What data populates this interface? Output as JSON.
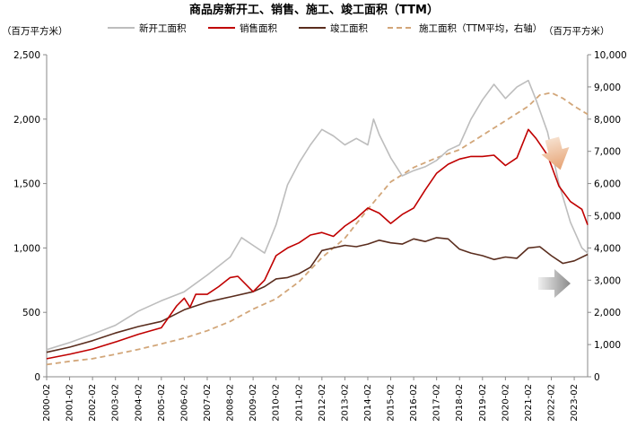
{
  "chart_data": {
    "type": "line",
    "title": "商品房新开工、销售、施工、竣工面积（TTM）",
    "ylabel_left": "（百万平方米）",
    "ylabel_right": "（百万平方米）",
    "ylim_left": [
      0,
      2500
    ],
    "ylim_right": [
      0,
      10000
    ],
    "yticks_left": [
      "0",
      "500",
      "1,000",
      "1,500",
      "2,000",
      "2,500"
    ],
    "yticks_right": [
      "0",
      "1,000",
      "2,000",
      "3,000",
      "4,000",
      "5,000",
      "6,000",
      "7,000",
      "8,000",
      "9,000",
      "10,000"
    ],
    "x": [
      "2000-02",
      "2001-02",
      "2002-02",
      "2003-02",
      "2004-02",
      "2005-02",
      "2006-02",
      "2007-02",
      "2008-02",
      "2009-02",
      "2010-02",
      "2011-02",
      "2012-02",
      "2013-02",
      "2014-02",
      "2015-02",
      "2016-02",
      "2017-02",
      "2018-02",
      "2019-02",
      "2020-02",
      "2021-02",
      "2022-02",
      "2023-02"
    ],
    "x_start": "2000-02",
    "x_end": "2023-09",
    "grid": false,
    "legend_position": "top",
    "series": [
      {
        "name": "新开工面积",
        "axis": "left",
        "color": "#bdbdbd",
        "style": "solid",
        "points": [
          [
            "2000-02",
            210
          ],
          [
            "2001-02",
            265
          ],
          [
            "2002-02",
            330
          ],
          [
            "2003-02",
            400
          ],
          [
            "2004-02",
            510
          ],
          [
            "2005-02",
            590
          ],
          [
            "2006-02",
            660
          ],
          [
            "2007-02",
            790
          ],
          [
            "2008-02",
            930
          ],
          [
            "2008-08",
            1080
          ],
          [
            "2009-02",
            1020
          ],
          [
            "2009-08",
            960
          ],
          [
            "2010-02",
            1180
          ],
          [
            "2010-08",
            1490
          ],
          [
            "2011-02",
            1660
          ],
          [
            "2011-08",
            1800
          ],
          [
            "2012-02",
            1920
          ],
          [
            "2012-08",
            1870
          ],
          [
            "2013-02",
            1800
          ],
          [
            "2013-08",
            1850
          ],
          [
            "2014-02",
            1800
          ],
          [
            "2014-05",
            2000
          ],
          [
            "2014-08",
            1880
          ],
          [
            "2015-02",
            1700
          ],
          [
            "2015-08",
            1560
          ],
          [
            "2016-02",
            1600
          ],
          [
            "2016-08",
            1630
          ],
          [
            "2017-02",
            1680
          ],
          [
            "2017-08",
            1760
          ],
          [
            "2018-02",
            1800
          ],
          [
            "2018-08",
            2000
          ],
          [
            "2019-02",
            2150
          ],
          [
            "2019-08",
            2270
          ],
          [
            "2020-02",
            2160
          ],
          [
            "2020-08",
            2250
          ],
          [
            "2021-02",
            2300
          ],
          [
            "2021-06",
            2150
          ],
          [
            "2021-12",
            1900
          ],
          [
            "2022-06",
            1500
          ],
          [
            "2022-12",
            1200
          ],
          [
            "2023-06",
            1000
          ],
          [
            "2023-09",
            960
          ]
        ]
      },
      {
        "name": "销售面积",
        "axis": "left",
        "color": "#c00000",
        "style": "solid",
        "points": [
          [
            "2000-02",
            140
          ],
          [
            "2001-02",
            175
          ],
          [
            "2002-02",
            215
          ],
          [
            "2003-02",
            270
          ],
          [
            "2004-02",
            330
          ],
          [
            "2005-02",
            380
          ],
          [
            "2005-10",
            550
          ],
          [
            "2006-02",
            610
          ],
          [
            "2006-05",
            540
          ],
          [
            "2006-08",
            640
          ],
          [
            "2007-02",
            640
          ],
          [
            "2007-08",
            700
          ],
          [
            "2008-02",
            770
          ],
          [
            "2008-06",
            780
          ],
          [
            "2009-02",
            660
          ],
          [
            "2009-08",
            750
          ],
          [
            "2010-02",
            940
          ],
          [
            "2010-08",
            1000
          ],
          [
            "2011-02",
            1040
          ],
          [
            "2011-08",
            1100
          ],
          [
            "2012-02",
            1120
          ],
          [
            "2012-08",
            1090
          ],
          [
            "2013-02",
            1170
          ],
          [
            "2013-08",
            1230
          ],
          [
            "2014-02",
            1310
          ],
          [
            "2014-08",
            1270
          ],
          [
            "2015-02",
            1190
          ],
          [
            "2015-08",
            1260
          ],
          [
            "2016-02",
            1310
          ],
          [
            "2016-08",
            1450
          ],
          [
            "2017-02",
            1580
          ],
          [
            "2017-08",
            1650
          ],
          [
            "2018-02",
            1690
          ],
          [
            "2018-08",
            1710
          ],
          [
            "2019-02",
            1710
          ],
          [
            "2019-08",
            1720
          ],
          [
            "2020-02",
            1640
          ],
          [
            "2020-08",
            1700
          ],
          [
            "2021-02",
            1920
          ],
          [
            "2021-06",
            1850
          ],
          [
            "2021-12",
            1720
          ],
          [
            "2022-06",
            1480
          ],
          [
            "2022-12",
            1360
          ],
          [
            "2023-06",
            1300
          ],
          [
            "2023-09",
            1180
          ]
        ]
      },
      {
        "name": "竣工面积",
        "axis": "left",
        "color": "#5a2d1e",
        "style": "solid",
        "points": [
          [
            "2000-02",
            190
          ],
          [
            "2001-02",
            230
          ],
          [
            "2002-02",
            280
          ],
          [
            "2003-02",
            340
          ],
          [
            "2004-02",
            390
          ],
          [
            "2005-02",
            430
          ],
          [
            "2006-02",
            520
          ],
          [
            "2007-02",
            580
          ],
          [
            "2008-02",
            620
          ],
          [
            "2009-02",
            660
          ],
          [
            "2009-08",
            700
          ],
          [
            "2010-02",
            760
          ],
          [
            "2010-08",
            770
          ],
          [
            "2011-02",
            800
          ],
          [
            "2011-08",
            850
          ],
          [
            "2012-02",
            980
          ],
          [
            "2012-08",
            1000
          ],
          [
            "2013-02",
            1020
          ],
          [
            "2013-08",
            1010
          ],
          [
            "2014-02",
            1030
          ],
          [
            "2014-08",
            1060
          ],
          [
            "2015-02",
            1040
          ],
          [
            "2015-08",
            1030
          ],
          [
            "2016-02",
            1070
          ],
          [
            "2016-08",
            1050
          ],
          [
            "2017-02",
            1080
          ],
          [
            "2017-08",
            1070
          ],
          [
            "2018-02",
            990
          ],
          [
            "2018-08",
            960
          ],
          [
            "2019-02",
            940
          ],
          [
            "2019-08",
            910
          ],
          [
            "2020-02",
            930
          ],
          [
            "2020-08",
            920
          ],
          [
            "2021-02",
            1000
          ],
          [
            "2021-08",
            1010
          ],
          [
            "2022-02",
            940
          ],
          [
            "2022-08",
            880
          ],
          [
            "2023-02",
            900
          ],
          [
            "2023-09",
            950
          ]
        ]
      },
      {
        "name": "施工面积（TTM平均，右轴）",
        "axis": "right",
        "color": "#d2a679",
        "style": "dashed",
        "points": [
          [
            "2000-02",
            380
          ],
          [
            "2001-02",
            480
          ],
          [
            "2002-02",
            560
          ],
          [
            "2003-02",
            700
          ],
          [
            "2004-02",
            850
          ],
          [
            "2005-02",
            1020
          ],
          [
            "2006-02",
            1200
          ],
          [
            "2007-02",
            1430
          ],
          [
            "2008-02",
            1720
          ],
          [
            "2009-02",
            2100
          ],
          [
            "2010-02",
            2420
          ],
          [
            "2011-02",
            2950
          ],
          [
            "2012-02",
            3700
          ],
          [
            "2013-02",
            4300
          ],
          [
            "2014-02",
            5200
          ],
          [
            "2015-02",
            6050
          ],
          [
            "2016-02",
            6500
          ],
          [
            "2017-02",
            6800
          ],
          [
            "2018-02",
            7050
          ],
          [
            "2019-02",
            7500
          ],
          [
            "2020-02",
            7950
          ],
          [
            "2021-02",
            8400
          ],
          [
            "2021-08",
            8750
          ],
          [
            "2022-02",
            8820
          ],
          [
            "2022-08",
            8650
          ],
          [
            "2023-02",
            8400
          ],
          [
            "2023-09",
            8150
          ]
        ]
      }
    ]
  }
}
